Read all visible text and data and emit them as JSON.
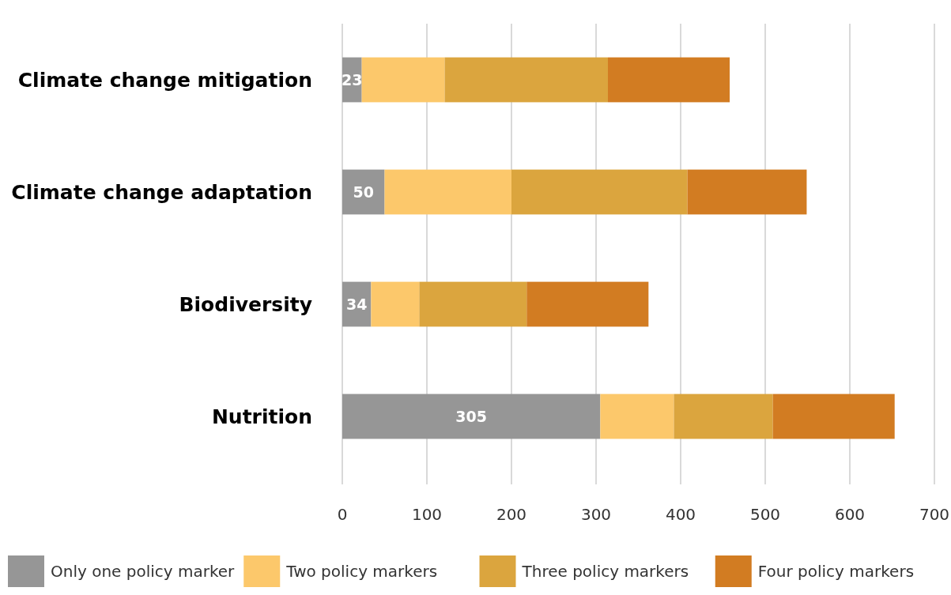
{
  "chart_data": {
    "type": "bar",
    "orientation": "horizontal",
    "stacked": true,
    "categories": [
      "Climate change mitigation",
      "Climate change adaptation",
      "Biodiversity",
      "Nutrition"
    ],
    "series": [
      {
        "name": "Only one policy marker",
        "color": "#969696",
        "values": [
          23,
          50,
          34,
          305
        ],
        "value_labels": [
          "23",
          "50",
          "34",
          "305"
        ]
      },
      {
        "name": "Two policy markers",
        "color": "#fcc86b",
        "values": [
          98,
          150,
          57,
          87
        ]
      },
      {
        "name": "Three policy markers",
        "color": "#dba53e",
        "values": [
          193,
          208,
          127,
          117
        ]
      },
      {
        "name": "Four policy markers",
        "color": "#d27c22",
        "values": [
          144,
          141,
          144,
          144
        ]
      }
    ],
    "xlim": [
      0,
      700
    ],
    "xticks": [
      0,
      100,
      200,
      300,
      400,
      500,
      600,
      700
    ],
    "grid": "x",
    "legend": "bottom"
  }
}
